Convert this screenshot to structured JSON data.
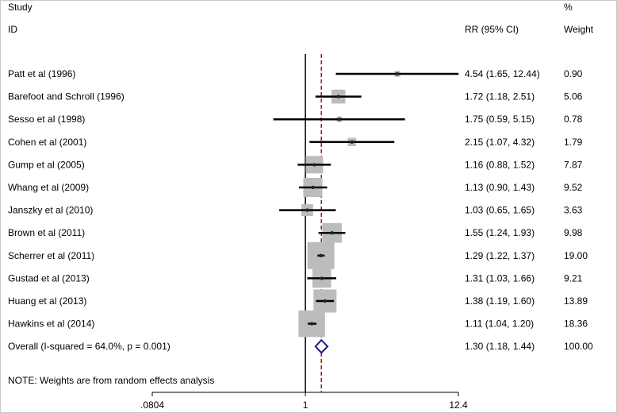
{
  "header": {
    "study_label": "Study",
    "id_label": "ID",
    "effect_label": "RR (95% CI)",
    "pct_label": "%",
    "weight_label": "Weight"
  },
  "note": "NOTE: Weights are from random effects analysis",
  "colors": {
    "null_line": "#000000",
    "pooled_line": "#a01818",
    "box": "#bcbcbc",
    "ci_line": "#000000",
    "diamond": "#1a1a8c"
  },
  "chart_data": {
    "type": "forest",
    "scale": "log",
    "x_ticks": [
      {
        "value": 0.0804,
        "label": ".0804"
      },
      {
        "value": 1,
        "label": "1"
      },
      {
        "value": 12.4,
        "label": "12.4"
      }
    ],
    "null_value": 1,
    "studies": [
      {
        "name": "Patt et al  (1996)",
        "rr": 4.54,
        "lo": 1.65,
        "hi": 12.44,
        "ci_text": "4.54 (1.65, 12.44)",
        "weight": 0.9,
        "weight_text": "0.90"
      },
      {
        "name": "Barefoot and Schroll  (1996)",
        "rr": 1.72,
        "lo": 1.18,
        "hi": 2.51,
        "ci_text": "1.72 (1.18, 2.51)",
        "weight": 5.06,
        "weight_text": "5.06"
      },
      {
        "name": "Sesso et al (1998)",
        "rr": 1.75,
        "lo": 0.59,
        "hi": 5.15,
        "ci_text": "1.75 (0.59, 5.15)",
        "weight": 0.78,
        "weight_text": "0.78"
      },
      {
        "name": "Cohen et al  (2001)",
        "rr": 2.15,
        "lo": 1.07,
        "hi": 4.32,
        "ci_text": "2.15 (1.07, 4.32)",
        "weight": 1.79,
        "weight_text": "1.79"
      },
      {
        "name": "Gump et al (2005)",
        "rr": 1.16,
        "lo": 0.88,
        "hi": 1.52,
        "ci_text": "1.16 (0.88, 1.52)",
        "weight": 7.87,
        "weight_text": "7.87"
      },
      {
        "name": "Whang et al (2009)",
        "rr": 1.13,
        "lo": 0.9,
        "hi": 1.43,
        "ci_text": "1.13 (0.90, 1.43)",
        "weight": 9.52,
        "weight_text": "9.52"
      },
      {
        "name": "Janszky et al (2010)",
        "rr": 1.03,
        "lo": 0.65,
        "hi": 1.65,
        "ci_text": "1.03 (0.65, 1.65)",
        "weight": 3.63,
        "weight_text": "3.63"
      },
      {
        "name": "Brown et al (2011)",
        "rr": 1.55,
        "lo": 1.24,
        "hi": 1.93,
        "ci_text": "1.55 (1.24, 1.93)",
        "weight": 9.98,
        "weight_text": "9.98"
      },
      {
        "name": "Scherrer et al (2011)",
        "rr": 1.29,
        "lo": 1.22,
        "hi": 1.37,
        "ci_text": "1.29 (1.22, 1.37)",
        "weight": 19.0,
        "weight_text": "19.00"
      },
      {
        "name": "Gustad et al (2013)",
        "rr": 1.31,
        "lo": 1.03,
        "hi": 1.66,
        "ci_text": "1.31 (1.03, 1.66)",
        "weight": 9.21,
        "weight_text": "9.21"
      },
      {
        "name": "Huang et al (2013)",
        "rr": 1.38,
        "lo": 1.19,
        "hi": 1.6,
        "ci_text": "1.38 (1.19, 1.60)",
        "weight": 13.89,
        "weight_text": "13.89"
      },
      {
        "name": "Hawkins et al (2014)",
        "rr": 1.11,
        "lo": 1.04,
        "hi": 1.2,
        "ci_text": "1.11 (1.04, 1.20)",
        "weight": 18.36,
        "weight_text": "18.36"
      }
    ],
    "overall": {
      "name": "Overall  (I-squared = 64.0%, p = 0.001)",
      "rr": 1.3,
      "lo": 1.18,
      "hi": 1.44,
      "ci_text": "1.30 (1.18, 1.44)",
      "weight_text": "100.00"
    }
  }
}
